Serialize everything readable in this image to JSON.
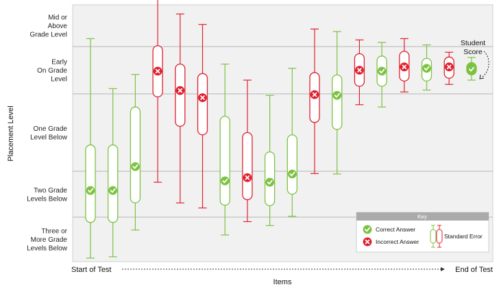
{
  "chart_data": {
    "type": "scatter",
    "title": "",
    "xlabel": "Items",
    "ylabel": "Placement Level",
    "x_start_label": "Start of Test",
    "x_end_label": "End of Test",
    "bands": [
      {
        "label": "Mid or Above Grade Level",
        "lines": [
          "Mid or",
          "Above",
          "Grade Level"
        ]
      },
      {
        "label": "Early On Grade Level",
        "lines": [
          "Early",
          "On Grade",
          "Level"
        ]
      },
      {
        "label": "One Grade Level Below",
        "lines": [
          "One Grade",
          "Level Below"
        ]
      },
      {
        "label": "Two Grade Levels Below",
        "lines": [
          "Two Grade",
          "Levels Below"
        ]
      },
      {
        "label": "Three or More Grade Levels Below",
        "lines": [
          "Three or",
          "More Grade",
          "Levels Below"
        ]
      }
    ],
    "y_scale_note": "0 = Three or More Grade Levels Below, 5 = top of Mid or Above Grade Level",
    "ylim": [
      0,
      5
    ],
    "items": [
      {
        "item": 1,
        "result": "correct",
        "estimate": 1.58,
        "low": 0.08,
        "high": 4.19,
        "box_low": 0.88,
        "box_high": 2.34
      },
      {
        "item": 2,
        "result": "correct",
        "estimate": 1.58,
        "low": 0.11,
        "high": 3.11,
        "box_low": 0.88,
        "box_high": 2.34
      },
      {
        "item": 3,
        "result": "correct",
        "estimate": 2.06,
        "low": 0.71,
        "high": 3.41,
        "box_low": 1.31,
        "box_high": 2.83
      },
      {
        "item": 4,
        "result": "incorrect",
        "estimate": 3.48,
        "low": 1.76,
        "high": 5.23,
        "box_low": 2.96,
        "box_high": 4.02
      },
      {
        "item": 5,
        "result": "incorrect",
        "estimate": 3.07,
        "low": 1.31,
        "high": 4.78,
        "box_low": 2.58,
        "box_high": 3.63
      },
      {
        "item": 6,
        "result": "incorrect",
        "estimate": 2.95,
        "low": 1.2,
        "high": 4.53,
        "box_low": 2.47,
        "box_high": 3.43
      },
      {
        "item": 7,
        "result": "correct",
        "estimate": 1.79,
        "low": 0.6,
        "high": 3.63,
        "box_low": 1.26,
        "box_high": 2.71
      },
      {
        "item": 8,
        "result": "incorrect",
        "estimate": 1.86,
        "low": 0.9,
        "high": 3.29,
        "box_low": 1.38,
        "box_high": 2.5
      },
      {
        "item": 9,
        "result": "correct",
        "estimate": 1.76,
        "low": 0.81,
        "high": 2.98,
        "box_low": 1.25,
        "box_high": 2.25
      },
      {
        "item": 10,
        "result": "correct",
        "estimate": 1.94,
        "low": 1.02,
        "high": 3.54,
        "box_low": 1.5,
        "box_high": 2.47
      },
      {
        "item": 11,
        "result": "incorrect",
        "estimate": 2.99,
        "low": 1.95,
        "high": 4.42,
        "box_low": 2.63,
        "box_high": 3.45
      },
      {
        "item": 12,
        "result": "correct",
        "estimate": 2.98,
        "low": 1.94,
        "high": 4.36,
        "box_low": 2.54,
        "box_high": 3.4
      },
      {
        "item": 13,
        "result": "incorrect",
        "estimate": 3.5,
        "low": 2.86,
        "high": 4.16,
        "box_low": 3.16,
        "box_high": 3.85
      },
      {
        "item": 14,
        "result": "correct",
        "estimate": 3.48,
        "low": 2.83,
        "high": 4.1,
        "box_low": 3.16,
        "box_high": 3.8
      },
      {
        "item": 15,
        "result": "incorrect",
        "estimate": 3.57,
        "low": 3.04,
        "high": 4.19,
        "box_low": 3.27,
        "box_high": 3.9
      },
      {
        "item": 16,
        "result": "correct",
        "estimate": 3.54,
        "low": 3.08,
        "high": 4.04,
        "box_low": 3.27,
        "box_high": 3.75
      },
      {
        "item": 17,
        "result": "incorrect",
        "estimate": 3.57,
        "low": 3.2,
        "high": 3.88,
        "box_low": 3.33,
        "box_high": 3.78
      },
      {
        "item": 18,
        "result": "correct",
        "estimate": 3.52,
        "low": 3.29,
        "high": 3.77,
        "box_low": 3.4,
        "box_high": 3.66
      }
    ],
    "student_score_label": [
      "Student",
      "Score"
    ],
    "key": {
      "title": "Key",
      "correct_label": "Correct Answer",
      "incorrect_label": "Incorrect Answer",
      "standard_error_label": "Standard Error"
    },
    "colors": {
      "correct": "#7cc242",
      "incorrect": "#e0202e",
      "plot_bg": "#f1f1f1",
      "band_line": "#b5b5b5",
      "key_header": "#aaaaaa"
    },
    "grid": false,
    "legend_position": "bottom-right"
  }
}
